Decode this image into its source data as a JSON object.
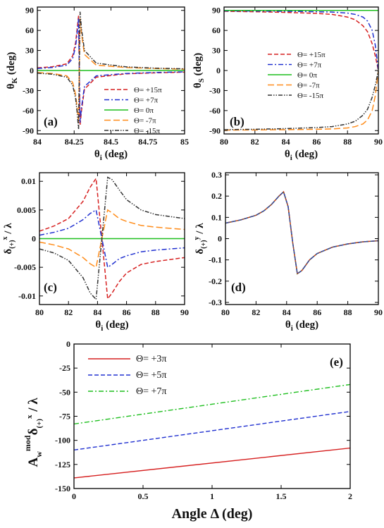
{
  "chart_data": [
    {
      "id": "a",
      "type": "line",
      "panel_label": "(a)",
      "xlabel_main": "θ",
      "xlabel_sub": "i",
      "xlabel_unit": " (deg)",
      "ylabel_main": "θ",
      "ylabel_sub": "K",
      "ylabel_unit": " (deg)",
      "xlim": [
        84,
        85
      ],
      "ylim": [
        -95,
        95
      ],
      "xticks": [
        84,
        84.25,
        84.5,
        84.75,
        85
      ],
      "xtick_labels": [
        "84",
        "84.25",
        "84.5",
        "84.75",
        "85"
      ],
      "yticks": [
        -90,
        -60,
        -30,
        0,
        30,
        60,
        90
      ],
      "ytick_labels": [
        "-90",
        "-60",
        "-30",
        "0",
        "30",
        "60",
        "90"
      ],
      "legend_position": "lower-right",
      "series": [
        {
          "name": "Θ= +15π",
          "color": "#d62020",
          "dash": "dashed",
          "x": [
            84.0,
            84.1,
            84.2,
            84.24,
            84.26,
            84.27,
            84.28,
            84.29,
            84.3,
            84.32,
            84.4,
            84.6,
            84.8,
            85.0
          ],
          "y": [
            4,
            5.5,
            10,
            22,
            42,
            62,
            82,
            -82,
            -60,
            -28,
            -10,
            -5,
            -3.5,
            -2.5
          ]
        },
        {
          "name": "Θ= +7π",
          "color": "#2030d0",
          "dash": "dashdot",
          "x": [
            84.0,
            84.1,
            84.2,
            84.24,
            84.26,
            84.27,
            84.28,
            84.29,
            84.3,
            84.32,
            84.4,
            84.6,
            84.8,
            85.0
          ],
          "y": [
            3,
            4.5,
            8,
            18,
            36,
            55,
            78,
            -78,
            -55,
            -24,
            -8,
            -4.5,
            -3,
            -2
          ]
        },
        {
          "name": "Θ= 0π",
          "color": "#1fbf1f",
          "dash": "solid",
          "x": [
            84.0,
            85.0
          ],
          "y": [
            0,
            0
          ]
        },
        {
          "name": "Θ= -7π",
          "color": "#ff8c1a",
          "dash": "longdash",
          "x": [
            84.0,
            84.1,
            84.2,
            84.24,
            84.26,
            84.27,
            84.28,
            84.29,
            84.3,
            84.32,
            84.4,
            84.6,
            84.8,
            85.0
          ],
          "y": [
            -3,
            -4.5,
            -8,
            -18,
            -36,
            -55,
            -78,
            78,
            55,
            24,
            8,
            4.5,
            3,
            2
          ]
        },
        {
          "name": "Θ= -15π",
          "color": "#333333",
          "dash": "dashdotdot",
          "x": [
            84.0,
            84.1,
            84.2,
            84.24,
            84.26,
            84.27,
            84.28,
            84.29,
            84.3,
            84.32,
            84.4,
            84.6,
            84.8,
            85.0
          ],
          "y": [
            -4,
            -5.5,
            -10,
            -22,
            -42,
            -62,
            -88,
            88,
            62,
            30,
            11,
            5.5,
            3.5,
            2.5
          ]
        }
      ]
    },
    {
      "id": "b",
      "type": "line",
      "panel_label": "(b)",
      "xlabel_main": "θ",
      "xlabel_sub": "i",
      "xlabel_unit": " (deg)",
      "ylabel_main": "θ",
      "ylabel_sub": "S",
      "ylabel_unit": " (deg)",
      "xlim": [
        80,
        90
      ],
      "ylim": [
        -95,
        95
      ],
      "xticks": [
        80,
        82,
        84,
        86,
        88,
        90
      ],
      "xtick_labels": [
        "80",
        "82",
        "84",
        "86",
        "88",
        "90"
      ],
      "yticks": [
        -90,
        -60,
        -30,
        0,
        30,
        60,
        90
      ],
      "ytick_labels": [
        "-90",
        "-60",
        "-30",
        "0",
        "30",
        "60",
        "90"
      ],
      "legend_position": "center",
      "series": [
        {
          "name": "Θ= +15π",
          "color": "#d62020",
          "dash": "dashed",
          "x": [
            80,
            82,
            84,
            86,
            87,
            88,
            88.5,
            89,
            89.3,
            89.6,
            89.8,
            90
          ],
          "y": [
            88.6,
            88,
            87,
            85.5,
            84,
            80,
            76,
            67,
            58,
            40,
            22,
            0
          ]
        },
        {
          "name": "Θ= +7π",
          "color": "#2030d0",
          "dash": "dashdot",
          "x": [
            80,
            82,
            84,
            86,
            87,
            88,
            88.5,
            89,
            89.3,
            89.6,
            89.8,
            90
          ],
          "y": [
            89.2,
            89,
            88.6,
            88,
            87.5,
            86,
            84,
            80,
            74,
            60,
            38,
            0
          ]
        },
        {
          "name": "Θ= 0π",
          "color": "#1fbf1f",
          "dash": "solid",
          "x": [
            80,
            90
          ],
          "y": [
            90,
            90
          ]
        },
        {
          "name": "Θ= -7π",
          "color": "#ff8c1a",
          "dash": "longdash",
          "x": [
            80,
            82,
            84,
            86,
            87,
            88,
            88.5,
            89,
            89.3,
            89.6,
            89.8,
            90
          ],
          "y": [
            -89.2,
            -89,
            -88.6,
            -88,
            -87.5,
            -86,
            -84,
            -80,
            -74,
            -60,
            -38,
            0
          ]
        },
        {
          "name": "Θ= -15π",
          "color": "#333333",
          "dash": "dashdotdot",
          "x": [
            80,
            82,
            84,
            86,
            87,
            88,
            88.5,
            89,
            89.3,
            89.6,
            89.8,
            90
          ],
          "y": [
            -88.6,
            -88,
            -87,
            -85.5,
            -84,
            -80,
            -76,
            -67,
            -58,
            -40,
            -22,
            0
          ]
        }
      ]
    },
    {
      "id": "c",
      "type": "line",
      "panel_label": "(c)",
      "xlabel_main": "θ",
      "xlabel_sub": "i",
      "xlabel_unit": " (deg)",
      "ylabel_main": "δ",
      "ylabel_sub": "(+)",
      "ylabel_sup": "x",
      "ylabel_unit": " / λ",
      "xlim": [
        80,
        90
      ],
      "ylim": [
        -0.0115,
        0.0115
      ],
      "xticks": [
        80,
        82,
        84,
        86,
        88,
        90
      ],
      "xtick_labels": [
        "80",
        "82",
        "84",
        "86",
        "88",
        "90"
      ],
      "yticks": [
        -0.01,
        -0.005,
        0,
        0.005,
        0.01
      ],
      "ytick_labels": [
        "-0.01",
        "-0.005",
        "0",
        "0.005",
        "0.01"
      ],
      "series": [
        {
          "name": "Θ= +15π",
          "color": "#d62020",
          "dash": "dashed",
          "x": [
            80,
            81,
            82,
            83,
            83.5,
            83.9,
            84.3,
            84.7,
            85,
            85.5,
            86,
            87,
            88,
            90
          ],
          "y": [
            0.0013,
            0.0022,
            0.0035,
            0.0065,
            0.009,
            0.0105,
            0.0,
            -0.0105,
            -0.0095,
            -0.0075,
            -0.006,
            -0.0045,
            -0.004,
            -0.0033
          ]
        },
        {
          "name": "Θ= +7π",
          "color": "#2030d0",
          "dash": "dashdot",
          "x": [
            80,
            81,
            82,
            83,
            83.5,
            83.9,
            84.3,
            84.7,
            85,
            85.5,
            86,
            87,
            88,
            90
          ],
          "y": [
            0.0006,
            0.0011,
            0.0018,
            0.0033,
            0.0044,
            0.005,
            0.0,
            -0.005,
            -0.0045,
            -0.0035,
            -0.003,
            -0.0023,
            -0.002,
            -0.0016
          ]
        },
        {
          "name": "Θ= 0π",
          "color": "#1fbf1f",
          "dash": "solid",
          "x": [
            80,
            90
          ],
          "y": [
            0,
            0
          ]
        },
        {
          "name": "Θ= -7π",
          "color": "#ff8c1a",
          "dash": "longdash",
          "x": [
            80,
            81,
            82,
            83,
            83.5,
            83.9,
            84.3,
            84.7,
            85,
            85.5,
            86,
            87,
            88,
            90
          ],
          "y": [
            -0.0006,
            -0.0011,
            -0.0018,
            -0.0033,
            -0.0044,
            -0.005,
            0.0,
            0.005,
            0.0045,
            0.0035,
            0.003,
            0.0023,
            0.002,
            0.0016
          ]
        },
        {
          "name": "Θ= -15π",
          "color": "#333333",
          "dash": "dashdotdot",
          "x": [
            80,
            81,
            82,
            83,
            83.5,
            83.9,
            84.3,
            84.7,
            85,
            85.5,
            86,
            87,
            88,
            90
          ],
          "y": [
            -0.0018,
            -0.0025,
            -0.0038,
            -0.0068,
            -0.0095,
            -0.0106,
            0.0,
            0.0107,
            0.0103,
            0.0085,
            0.0068,
            0.005,
            0.0042,
            0.0035
          ]
        }
      ]
    },
    {
      "id": "d",
      "type": "line",
      "panel_label": "(d)",
      "xlabel_main": "θ",
      "xlabel_sub": "i",
      "xlabel_unit": " (deg)",
      "ylabel_main": "δ",
      "ylabel_sub": "(+)",
      "ylabel_sup": "y",
      "ylabel_unit": " / λ",
      "xlim": [
        80,
        90
      ],
      "ylim": [
        -0.31,
        0.31
      ],
      "xticks": [
        80,
        82,
        84,
        86,
        88,
        90
      ],
      "xtick_labels": [
        "80",
        "82",
        "84",
        "86",
        "88",
        "90"
      ],
      "yticks": [
        -0.3,
        -0.2,
        -0.1,
        0,
        0.1,
        0.2,
        0.3
      ],
      "ytick_labels": [
        "-0.3",
        "-0.2",
        "-0.1",
        "0",
        "0.1",
        "0.2",
        "0.3"
      ],
      "series": [
        {
          "name": "Θ= +15π",
          "color": "#d62020",
          "dash": "solid",
          "x": [
            80,
            81,
            82,
            82.5,
            83,
            83.5,
            83.8,
            84.1,
            84.4,
            84.7,
            85,
            85.5,
            86,
            87,
            88,
            89,
            90
          ],
          "y": [
            0.073,
            0.088,
            0.11,
            0.13,
            0.16,
            0.2,
            0.22,
            0.15,
            -0.02,
            -0.165,
            -0.15,
            -0.1,
            -0.07,
            -0.04,
            -0.025,
            -0.015,
            -0.01
          ]
        },
        {
          "name": "Θ= +7π",
          "color": "#2030d0",
          "dash": "dashed",
          "x": [
            80,
            81,
            82,
            82.5,
            83,
            83.5,
            83.8,
            84.1,
            84.4,
            84.7,
            85,
            85.5,
            86,
            87,
            88,
            89,
            90
          ],
          "y": [
            0.073,
            0.088,
            0.11,
            0.13,
            0.16,
            0.2,
            0.22,
            0.15,
            -0.02,
            -0.165,
            -0.15,
            -0.1,
            -0.07,
            -0.04,
            -0.025,
            -0.015,
            -0.01
          ]
        },
        {
          "name": "Θ= -15π",
          "color": "#5a7a2a",
          "dash": "dotted",
          "x": [
            80,
            81,
            82,
            82.5,
            83,
            83.5,
            83.8,
            84.1,
            84.4,
            84.7,
            85,
            85.5,
            86,
            87,
            88,
            89,
            90
          ],
          "y": [
            0.073,
            0.088,
            0.11,
            0.13,
            0.16,
            0.2,
            0.22,
            0.15,
            -0.02,
            -0.165,
            -0.15,
            -0.1,
            -0.07,
            -0.04,
            -0.025,
            -0.015,
            -0.01
          ]
        }
      ]
    },
    {
      "id": "e",
      "type": "line",
      "panel_label": "(e)",
      "xlabel_main": "Angle Δ (deg)",
      "ylabel_main": "A",
      "ylabel_w": "w",
      "ylabel_mod": "mod",
      "ylabel_delta": "δ",
      "ylabel_sub": "(+)",
      "ylabel_sup": "x",
      "ylabel_unit": " / λ",
      "xlim": [
        0,
        2
      ],
      "ylim": [
        -150,
        0
      ],
      "xticks": [
        0,
        0.5,
        1,
        1.5,
        2
      ],
      "xtick_labels": [
        "0",
        "0.5",
        "1",
        "1.5",
        "2"
      ],
      "yticks": [
        -150,
        -125,
        -100,
        -75,
        -50,
        -25,
        0
      ],
      "ytick_labels": [
        "-150",
        "-125",
        "-100",
        "-75",
        "-50",
        "-25",
        "0"
      ],
      "legend_position": "top-left",
      "series": [
        {
          "name": "Θ= +3π",
          "color": "#d62020",
          "dash": "solid",
          "x": [
            0,
            2
          ],
          "y": [
            -139,
            -108
          ]
        },
        {
          "name": "Θ= +5π",
          "color": "#2030d0",
          "dash": "dashed",
          "x": [
            0,
            2
          ],
          "y": [
            -110,
            -70
          ]
        },
        {
          "name": "Θ= +7π",
          "color": "#1fbf1f",
          "dash": "dashdot",
          "x": [
            0,
            2
          ],
          "y": [
            -83,
            -42
          ]
        }
      ]
    }
  ]
}
